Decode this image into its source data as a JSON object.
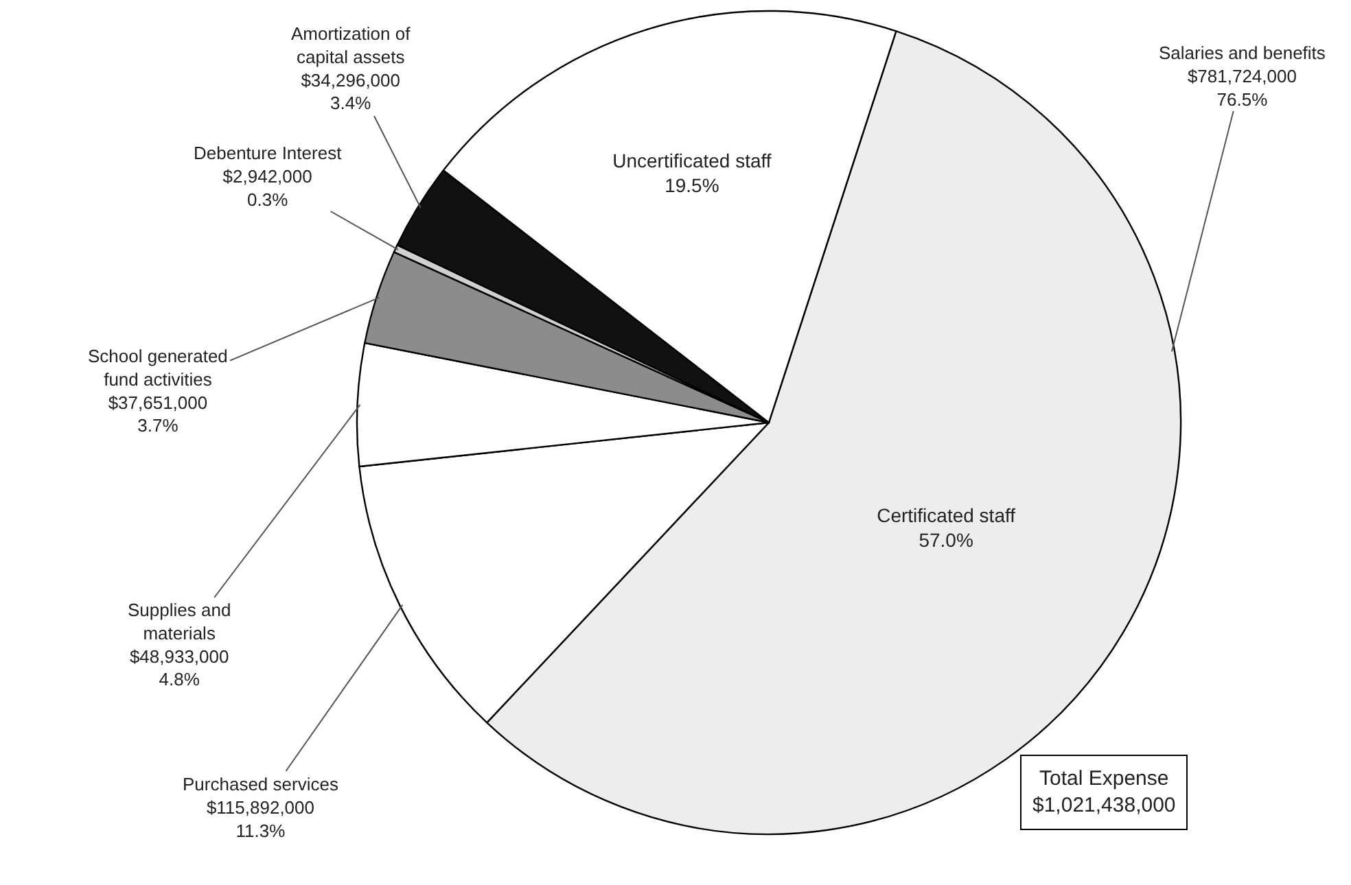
{
  "chart_data": {
    "type": "pie",
    "categories": [
      "Certificated staff",
      "Purchased services",
      "Supplies and materials",
      "School generated fund activities",
      "Debenture Interest",
      "Amortization of capital assets",
      "Uncertificated staff"
    ],
    "values": [
      57.0,
      11.3,
      4.8,
      3.7,
      0.3,
      3.4,
      19.5
    ],
    "colors": [
      "#ededed",
      "#ffffff",
      "#ffffff",
      "#8c8c8c",
      "#d0d0d0",
      "#111111",
      "#ffffff"
    ],
    "value_labels": [
      "57.0%",
      "$115,892,000\n11.3%",
      "$48,933,000\n4.8%",
      "$37,651,000\n3.7%",
      "$2,942,000\n0.3%",
      "$34,296,000\n3.4%",
      "19.5%"
    ],
    "annotations": [
      "Salaries and benefits\n$781,724,000\n76.5%",
      "Total Expense\n$1,021,438,000"
    ],
    "legend": false
  }
}
